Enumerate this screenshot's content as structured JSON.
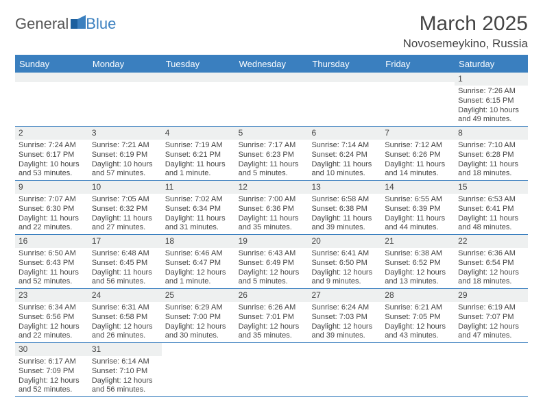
{
  "logo": {
    "text1": "General",
    "text2": "Blue"
  },
  "title": "March 2025",
  "subtitle": "Novosemeykino, Russia",
  "colors": {
    "accent": "#3a7fbf",
    "shaded_bg": "#eef0f0",
    "text": "#444444",
    "page_bg": "#ffffff"
  },
  "day_headers": [
    "Sunday",
    "Monday",
    "Tuesday",
    "Wednesday",
    "Thursday",
    "Friday",
    "Saturday"
  ],
  "weeks": [
    [
      null,
      null,
      null,
      null,
      null,
      null,
      {
        "n": "1",
        "sr": "Sunrise: 7:26 AM",
        "ss": "Sunset: 6:15 PM",
        "dl": "Daylight: 10 hours and 49 minutes."
      }
    ],
    [
      {
        "n": "2",
        "sr": "Sunrise: 7:24 AM",
        "ss": "Sunset: 6:17 PM",
        "dl": "Daylight: 10 hours and 53 minutes."
      },
      {
        "n": "3",
        "sr": "Sunrise: 7:21 AM",
        "ss": "Sunset: 6:19 PM",
        "dl": "Daylight: 10 hours and 57 minutes."
      },
      {
        "n": "4",
        "sr": "Sunrise: 7:19 AM",
        "ss": "Sunset: 6:21 PM",
        "dl": "Daylight: 11 hours and 1 minute."
      },
      {
        "n": "5",
        "sr": "Sunrise: 7:17 AM",
        "ss": "Sunset: 6:23 PM",
        "dl": "Daylight: 11 hours and 5 minutes."
      },
      {
        "n": "6",
        "sr": "Sunrise: 7:14 AM",
        "ss": "Sunset: 6:24 PM",
        "dl": "Daylight: 11 hours and 10 minutes."
      },
      {
        "n": "7",
        "sr": "Sunrise: 7:12 AM",
        "ss": "Sunset: 6:26 PM",
        "dl": "Daylight: 11 hours and 14 minutes."
      },
      {
        "n": "8",
        "sr": "Sunrise: 7:10 AM",
        "ss": "Sunset: 6:28 PM",
        "dl": "Daylight: 11 hours and 18 minutes."
      }
    ],
    [
      {
        "n": "9",
        "sr": "Sunrise: 7:07 AM",
        "ss": "Sunset: 6:30 PM",
        "dl": "Daylight: 11 hours and 22 minutes."
      },
      {
        "n": "10",
        "sr": "Sunrise: 7:05 AM",
        "ss": "Sunset: 6:32 PM",
        "dl": "Daylight: 11 hours and 27 minutes."
      },
      {
        "n": "11",
        "sr": "Sunrise: 7:02 AM",
        "ss": "Sunset: 6:34 PM",
        "dl": "Daylight: 11 hours and 31 minutes."
      },
      {
        "n": "12",
        "sr": "Sunrise: 7:00 AM",
        "ss": "Sunset: 6:36 PM",
        "dl": "Daylight: 11 hours and 35 minutes."
      },
      {
        "n": "13",
        "sr": "Sunrise: 6:58 AM",
        "ss": "Sunset: 6:38 PM",
        "dl": "Daylight: 11 hours and 39 minutes."
      },
      {
        "n": "14",
        "sr": "Sunrise: 6:55 AM",
        "ss": "Sunset: 6:39 PM",
        "dl": "Daylight: 11 hours and 44 minutes."
      },
      {
        "n": "15",
        "sr": "Sunrise: 6:53 AM",
        "ss": "Sunset: 6:41 PM",
        "dl": "Daylight: 11 hours and 48 minutes."
      }
    ],
    [
      {
        "n": "16",
        "sr": "Sunrise: 6:50 AM",
        "ss": "Sunset: 6:43 PM",
        "dl": "Daylight: 11 hours and 52 minutes."
      },
      {
        "n": "17",
        "sr": "Sunrise: 6:48 AM",
        "ss": "Sunset: 6:45 PM",
        "dl": "Daylight: 11 hours and 56 minutes."
      },
      {
        "n": "18",
        "sr": "Sunrise: 6:46 AM",
        "ss": "Sunset: 6:47 PM",
        "dl": "Daylight: 12 hours and 1 minute."
      },
      {
        "n": "19",
        "sr": "Sunrise: 6:43 AM",
        "ss": "Sunset: 6:49 PM",
        "dl": "Daylight: 12 hours and 5 minutes."
      },
      {
        "n": "20",
        "sr": "Sunrise: 6:41 AM",
        "ss": "Sunset: 6:50 PM",
        "dl": "Daylight: 12 hours and 9 minutes."
      },
      {
        "n": "21",
        "sr": "Sunrise: 6:38 AM",
        "ss": "Sunset: 6:52 PM",
        "dl": "Daylight: 12 hours and 13 minutes."
      },
      {
        "n": "22",
        "sr": "Sunrise: 6:36 AM",
        "ss": "Sunset: 6:54 PM",
        "dl": "Daylight: 12 hours and 18 minutes."
      }
    ],
    [
      {
        "n": "23",
        "sr": "Sunrise: 6:34 AM",
        "ss": "Sunset: 6:56 PM",
        "dl": "Daylight: 12 hours and 22 minutes."
      },
      {
        "n": "24",
        "sr": "Sunrise: 6:31 AM",
        "ss": "Sunset: 6:58 PM",
        "dl": "Daylight: 12 hours and 26 minutes."
      },
      {
        "n": "25",
        "sr": "Sunrise: 6:29 AM",
        "ss": "Sunset: 7:00 PM",
        "dl": "Daylight: 12 hours and 30 minutes."
      },
      {
        "n": "26",
        "sr": "Sunrise: 6:26 AM",
        "ss": "Sunset: 7:01 PM",
        "dl": "Daylight: 12 hours and 35 minutes."
      },
      {
        "n": "27",
        "sr": "Sunrise: 6:24 AM",
        "ss": "Sunset: 7:03 PM",
        "dl": "Daylight: 12 hours and 39 minutes."
      },
      {
        "n": "28",
        "sr": "Sunrise: 6:21 AM",
        "ss": "Sunset: 7:05 PM",
        "dl": "Daylight: 12 hours and 43 minutes."
      },
      {
        "n": "29",
        "sr": "Sunrise: 6:19 AM",
        "ss": "Sunset: 7:07 PM",
        "dl": "Daylight: 12 hours and 47 minutes."
      }
    ],
    [
      {
        "n": "30",
        "sr": "Sunrise: 6:17 AM",
        "ss": "Sunset: 7:09 PM",
        "dl": "Daylight: 12 hours and 52 minutes."
      },
      {
        "n": "31",
        "sr": "Sunrise: 6:14 AM",
        "ss": "Sunset: 7:10 PM",
        "dl": "Daylight: 12 hours and 56 minutes."
      },
      null,
      null,
      null,
      null,
      null
    ]
  ]
}
